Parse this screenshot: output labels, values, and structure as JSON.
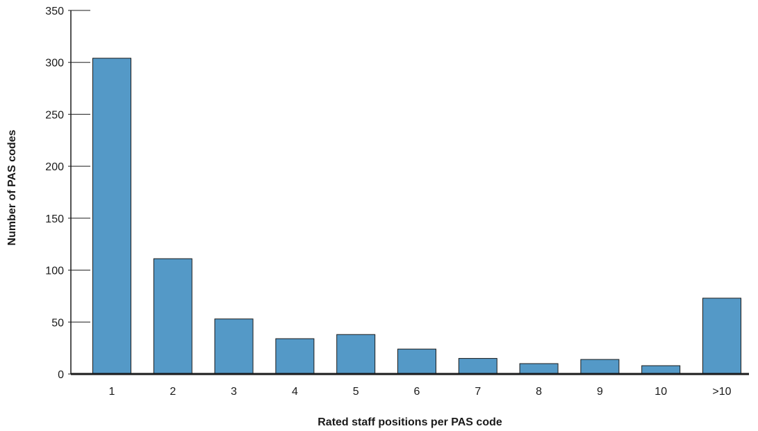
{
  "chart_data": {
    "type": "bar",
    "categories": [
      "1",
      "2",
      "3",
      "4",
      "5",
      "6",
      "7",
      "8",
      "9",
      "10",
      ">10"
    ],
    "values": [
      304,
      111,
      53,
      34,
      38,
      24,
      15,
      10,
      14,
      8,
      73
    ],
    "xlabel": "Rated staff positions per PAS code",
    "ylabel": "Number of PAS codes",
    "ylim": [
      0,
      350
    ],
    "yticks": [
      0,
      50,
      100,
      150,
      200,
      250,
      300,
      350
    ],
    "grid": false,
    "legend": "none",
    "bar_color": "#5499c7"
  }
}
